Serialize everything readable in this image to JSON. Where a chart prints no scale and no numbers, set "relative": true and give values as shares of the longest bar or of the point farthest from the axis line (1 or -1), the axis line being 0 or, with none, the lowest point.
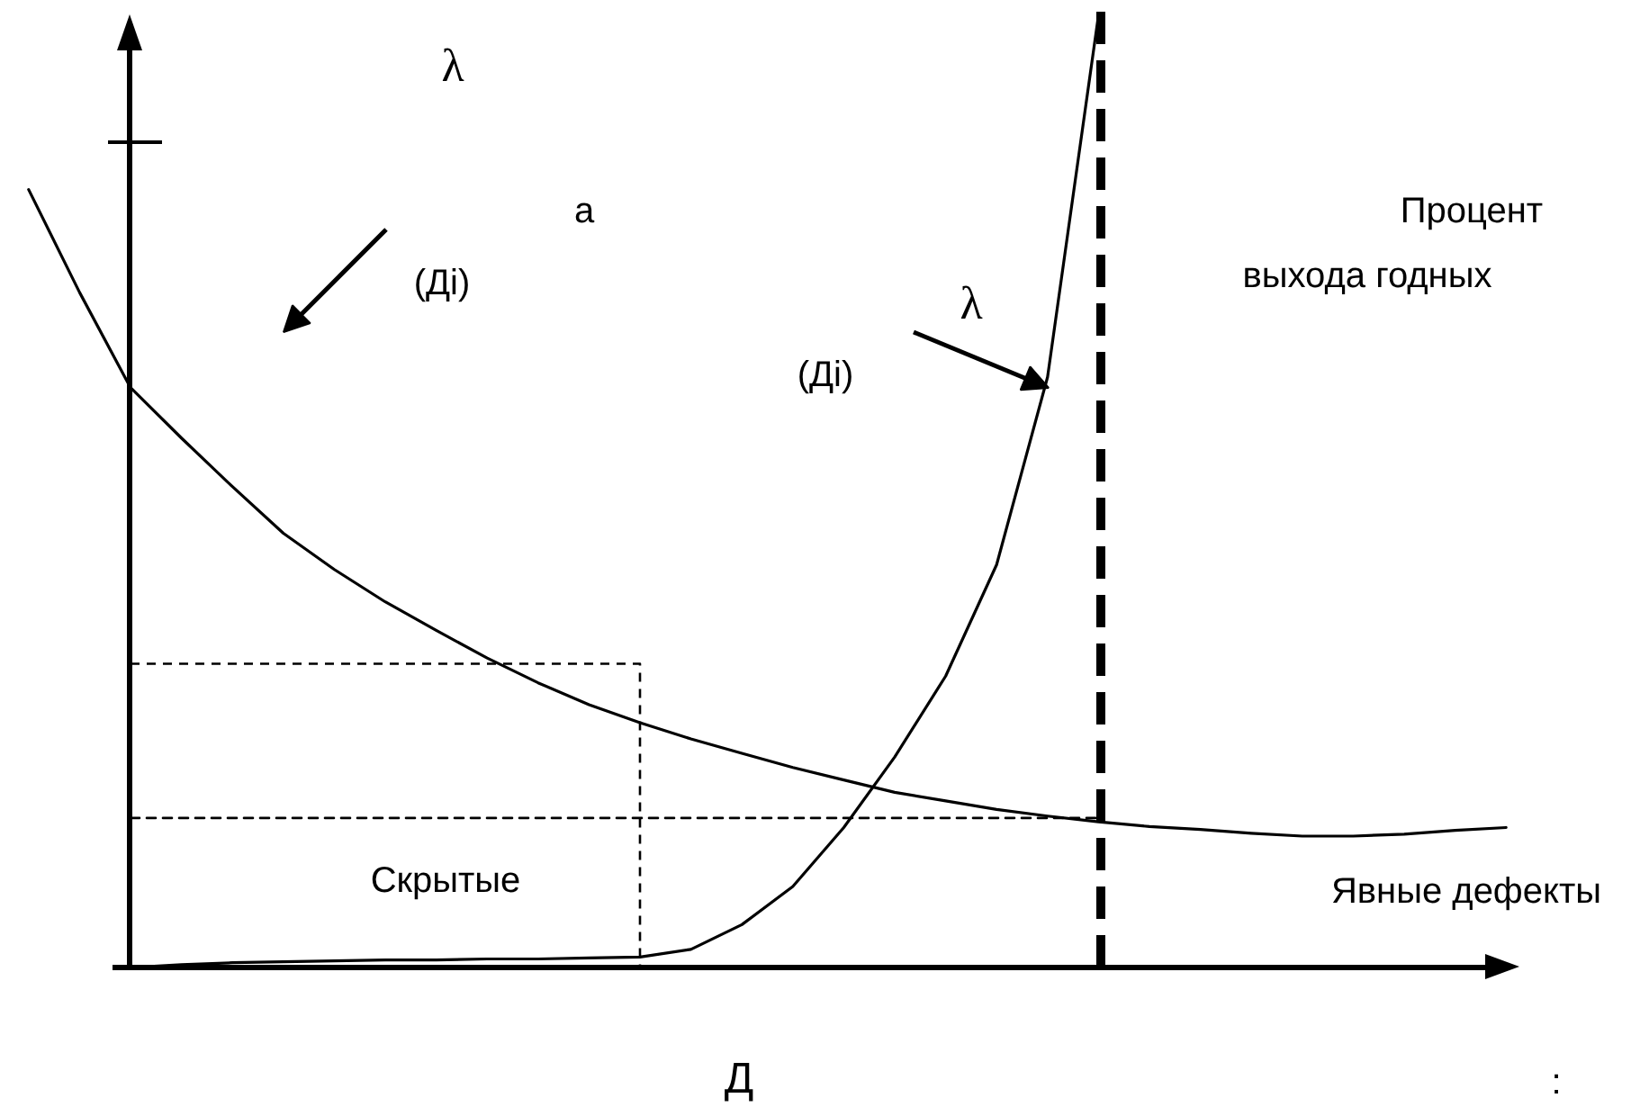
{
  "chart_data": {
    "type": "line",
    "relative": true,
    "xlabel": "Д",
    "categories": [
      null,
      null,
      null,
      null,
      null,
      null,
      null,
      null,
      null,
      null,
      null,
      null,
      null,
      null,
      null,
      null,
      null,
      null,
      null,
      null,
      null,
      null,
      null,
      null,
      null,
      null,
      null,
      null,
      null,
      null
    ],
    "series": [
      {
        "color": "#000000",
        "values": [
          0.817,
          0.709,
          0.609,
          0.556,
          0.505,
          0.456,
          0.418,
          0.384,
          0.354,
          0.325,
          0.299,
          0.276,
          0.257,
          0.24,
          0.225,
          0.21,
          0.197,
          0.184,
          0.175,
          0.166,
          0.159,
          0.153,
          0.148,
          0.145,
          0.141,
          0.138,
          0.138,
          0.14,
          0.144,
          0.147
        ]
      },
      {
        "color": "#000000",
        "values": [
          null,
          null,
          0,
          0.003,
          0.005,
          0.006,
          0.007,
          0.008,
          0.008,
          0.009,
          0.009,
          0.01,
          0.011,
          0.019,
          0.045,
          0.085,
          0.147,
          0.221,
          0.306,
          0.423,
          0.62,
          1.0,
          null,
          null,
          null,
          null,
          null,
          null,
          null,
          null
        ]
      },
      {
        "type": "step",
        "color": "#000000",
        "line_style": "dashed",
        "values": [
          null,
          null,
          0.319,
          0.319,
          0.319,
          0.319,
          0.319,
          0.319,
          0.319,
          0.319,
          0.319,
          0.319,
          0,
          null,
          null,
          null,
          null,
          null,
          null,
          null,
          null,
          null,
          null,
          null,
          null,
          null,
          null,
          null,
          null,
          null
        ]
      },
      {
        "color": "#000000",
        "line_style": "dashed",
        "values": [
          null,
          null,
          0.157,
          0.157,
          0.157,
          0.157,
          0.157,
          0.157,
          0.157,
          0.157,
          0.157,
          0.157,
          0.157,
          0.157,
          0.157,
          0.157,
          0.157,
          0.157,
          0.157,
          0.157,
          0.157,
          0.157,
          null,
          null,
          null,
          null,
          null,
          null,
          null,
          null
        ]
      }
    ],
    "annotations": [
      "λ",
      "а",
      "(Дi)",
      "λ",
      "(Дi)",
      "Процент",
      "выхода годных",
      "Скрытые",
      "Явные дефекты",
      ":"
    ]
  }
}
